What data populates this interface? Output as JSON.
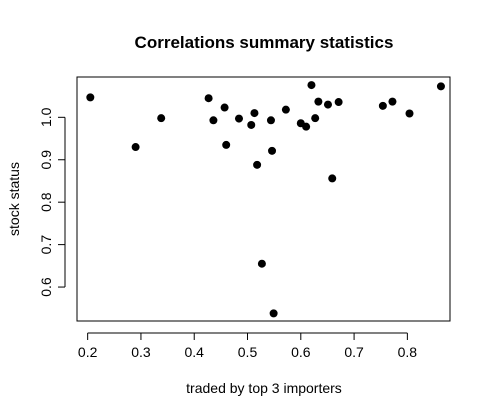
{
  "chart_data": {
    "type": "scatter",
    "title": "Correlations summary statistics",
    "xlabel": "traded by top 3 importers",
    "ylabel": "stock status",
    "xlim": [
      0.18,
      0.88
    ],
    "ylim": [
      0.52,
      1.095
    ],
    "x_ticks": [
      0.2,
      0.3,
      0.4,
      0.5,
      0.6,
      0.7,
      0.8
    ],
    "x_tick_labels": [
      "0.2",
      "0.3",
      "0.4",
      "0.5",
      "0.6",
      "0.7",
      "0.8"
    ],
    "y_ticks": [
      0.6,
      0.7,
      0.8,
      0.9,
      1.0
    ],
    "y_tick_labels": [
      "0.6",
      "0.7",
      "0.8",
      "0.9",
      "1.0"
    ],
    "grid": false,
    "legend": "none",
    "point_color": "#000000",
    "points": [
      {
        "x": 0.205,
        "y": 1.047
      },
      {
        "x": 0.29,
        "y": 0.93
      },
      {
        "x": 0.338,
        "y": 0.998
      },
      {
        "x": 0.427,
        "y": 1.045
      },
      {
        "x": 0.436,
        "y": 0.993
      },
      {
        "x": 0.457,
        "y": 1.023
      },
      {
        "x": 0.46,
        "y": 0.935
      },
      {
        "x": 0.484,
        "y": 0.997
      },
      {
        "x": 0.507,
        "y": 0.982
      },
      {
        "x": 0.513,
        "y": 1.01
      },
      {
        "x": 0.518,
        "y": 0.888
      },
      {
        "x": 0.527,
        "y": 0.655
      },
      {
        "x": 0.544,
        "y": 0.993
      },
      {
        "x": 0.546,
        "y": 0.921
      },
      {
        "x": 0.549,
        "y": 0.538
      },
      {
        "x": 0.572,
        "y": 1.018
      },
      {
        "x": 0.6,
        "y": 0.986
      },
      {
        "x": 0.61,
        "y": 0.978
      },
      {
        "x": 0.62,
        "y": 1.076
      },
      {
        "x": 0.627,
        "y": 0.998
      },
      {
        "x": 0.633,
        "y": 1.037
      },
      {
        "x": 0.651,
        "y": 1.03
      },
      {
        "x": 0.659,
        "y": 0.856
      },
      {
        "x": 0.671,
        "y": 1.036
      },
      {
        "x": 0.754,
        "y": 1.027
      },
      {
        "x": 0.772,
        "y": 1.037
      },
      {
        "x": 0.804,
        "y": 1.009
      },
      {
        "x": 0.863,
        "y": 1.073
      }
    ]
  }
}
